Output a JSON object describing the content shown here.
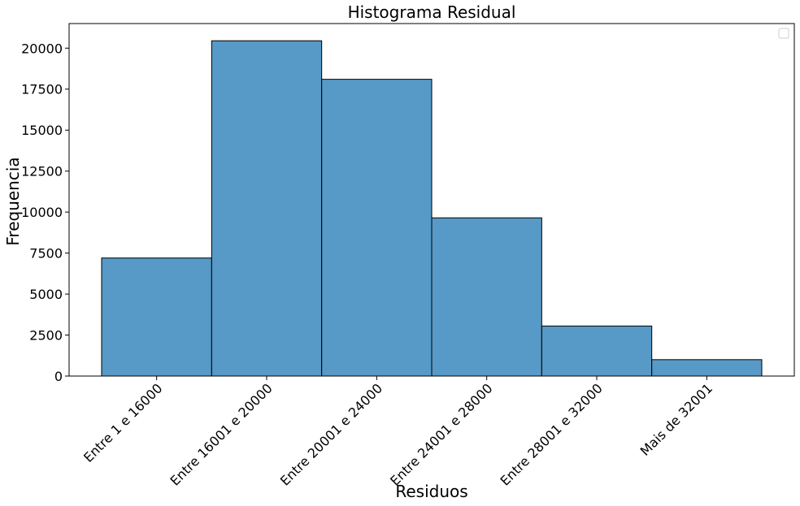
{
  "chart_data": {
    "type": "bar",
    "title": "Histograma Residual",
    "xlabel": "Residuos",
    "ylabel": "Frequencia",
    "categories": [
      "Entre 1 e 16000",
      "Entre 16001 e 20000",
      "Entre 20001 e 24000",
      "Entre 24001 e 28000",
      "Entre 28001 e 32000",
      "Mais de 32001"
    ],
    "values": [
      7200,
      20450,
      18100,
      9650,
      3050,
      1000
    ],
    "ylim": [
      0,
      21500
    ],
    "yticks": [
      0,
      2500,
      5000,
      7500,
      10000,
      12500,
      15000,
      17500,
      20000
    ],
    "ytick_labels": [
      "0",
      "2500",
      "5000",
      "7500",
      "10000",
      "12500",
      "15000",
      "17500",
      "20000"
    ],
    "grid": false,
    "legend": "top-right (empty)",
    "colors": {
      "bar_fill": "#5799c7",
      "bar_edge": "#000000"
    }
  }
}
